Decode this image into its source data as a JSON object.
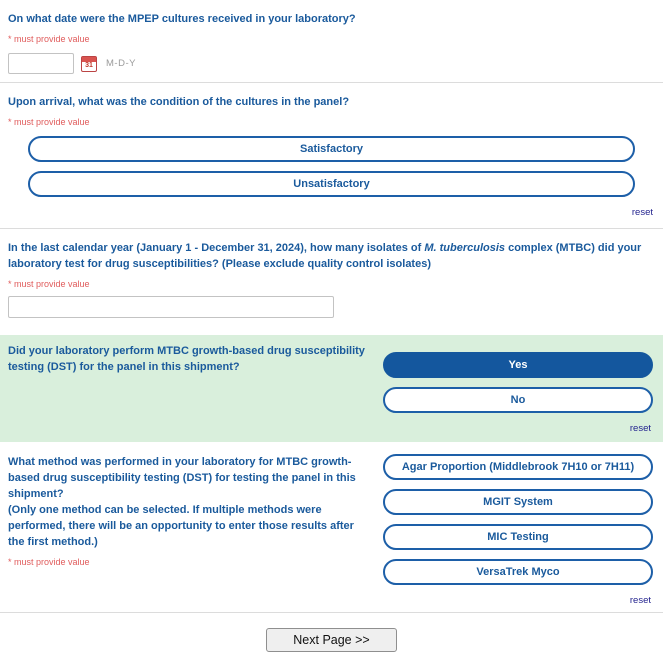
{
  "form": {
    "required_note": "* must provide value",
    "reset_label": "reset",
    "next_button_label": "Next Page >>"
  },
  "q_date": {
    "label": "On what date were the MPEP cultures received in your laboratory?",
    "value": "",
    "format": "M-D-Y",
    "calendar_icon_day": "31"
  },
  "q_condition": {
    "label": "Upon arrival, what was the condition of the cultures in the panel?",
    "options": [
      "Satisfactory",
      "Unsatisfactory"
    ]
  },
  "q_isolates": {
    "label_before": "In the last calendar year (January 1 - December 31, 2024), how many isolates of ",
    "label_italic": "M. tuberculosis",
    "label_after": " complex (MTBC) did your laboratory test for drug susceptibilities? (Please exclude quality control isolates)",
    "value": ""
  },
  "q_dst": {
    "label": "Did your laboratory perform MTBC growth-based drug susceptibility testing (DST) for the panel in this shipment?",
    "options": [
      "Yes",
      "No"
    ],
    "selected": "Yes"
  },
  "q_method": {
    "label": "What method was performed in your laboratory for MTBC growth-based drug susceptibility testing (DST) for testing the panel in this shipment?",
    "note": "(Only one method can be selected. If multiple methods were performed, there will be an opportunity to enter those results after the first method.)",
    "options": [
      "Agar Proportion (Middlebrook 7H10 or 7H11)",
      "MGIT System",
      "MIC Testing",
      "VersaTrek Myco"
    ]
  },
  "colors": {
    "question_blue": "#1a5a9c",
    "button_border_blue": "#1d5fa8",
    "selected_fill_blue": "#14579e",
    "required_red": "#e05c5c",
    "highlight_green": "#d9efdc"
  }
}
